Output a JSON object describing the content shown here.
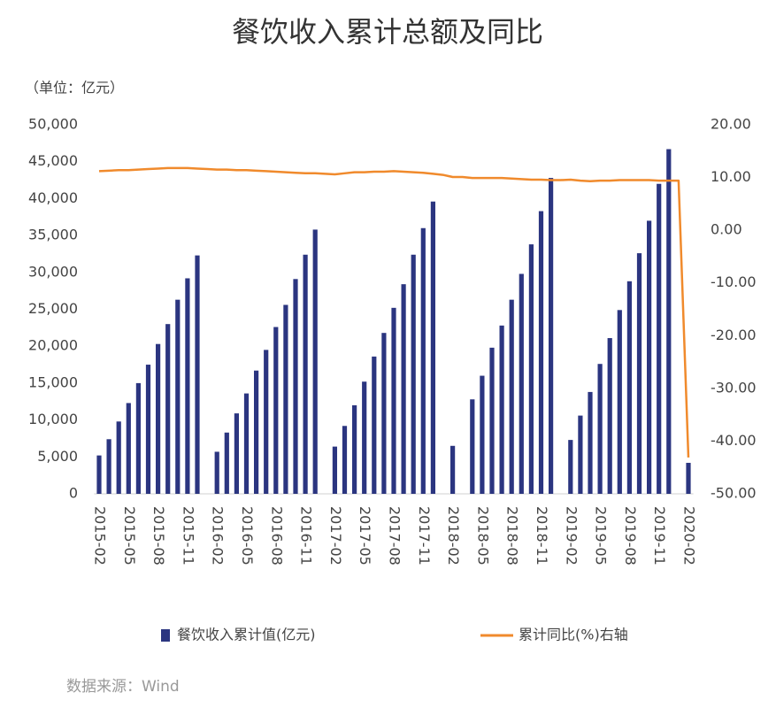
{
  "chart_data": {
    "type": "bar_line",
    "title": "餐饮收入累计总额及同比",
    "unit_label": "（单位：亿元）",
    "source": "数据来源：Wind",
    "categories": [
      "2015-02",
      null,
      null,
      "2015-05",
      null,
      null,
      "2015-08",
      null,
      null,
      "2015-11",
      null,
      null,
      "2016-02",
      null,
      null,
      "2016-05",
      null,
      null,
      "2016-08",
      null,
      null,
      "2016-11",
      null,
      null,
      "2017-02",
      null,
      null,
      "2017-05",
      null,
      null,
      "2017-08",
      null,
      null,
      "2017-11",
      null,
      null,
      "2018-02",
      null,
      null,
      "2018-05",
      null,
      null,
      "2018-08",
      null,
      null,
      "2018-11",
      null,
      null,
      "2019-02",
      null,
      null,
      "2019-05",
      null,
      null,
      "2019-08",
      null,
      null,
      "2019-11",
      null,
      null,
      "2020-02"
    ],
    "series": [
      {
        "name": "餐饮收入累计值(亿元)",
        "color": "#2b3580",
        "kind": "bar",
        "axis": "y",
        "values": [
          5200,
          7400,
          9800,
          12300,
          15000,
          17500,
          20300,
          23000,
          26300,
          29200,
          32300,
          null,
          5700,
          8300,
          10900,
          13600,
          16700,
          19500,
          22600,
          25600,
          29100,
          32400,
          35800,
          null,
          6400,
          9200,
          12000,
          15200,
          18600,
          21800,
          25200,
          28400,
          32400,
          36000,
          39600,
          null,
          6500,
          null,
          12800,
          16000,
          19800,
          22800,
          26300,
          29800,
          33800,
          38300,
          42800,
          null,
          7300,
          10600,
          13800,
          17600,
          21100,
          24900,
          28800,
          32600,
          37000,
          42000,
          46700,
          null,
          4200
        ]
      },
      {
        "name": "累计同比(%)右轴",
        "color": "#f08a2c",
        "kind": "line",
        "axis": "y2",
        "values": [
          11.2,
          11.3,
          11.4,
          11.4,
          11.5,
          11.6,
          11.7,
          11.8,
          11.8,
          11.8,
          11.7,
          11.6,
          11.5,
          11.5,
          11.4,
          11.4,
          11.3,
          11.2,
          11.1,
          11.0,
          10.9,
          10.8,
          10.8,
          10.7,
          10.6,
          10.8,
          11.0,
          11.0,
          11.1,
          11.1,
          11.2,
          11.1,
          11.0,
          10.9,
          10.7,
          10.5,
          10.1,
          10.1,
          9.9,
          9.9,
          9.9,
          9.9,
          9.8,
          9.7,
          9.6,
          9.6,
          9.5,
          9.5,
          9.6,
          9.4,
          9.3,
          9.4,
          9.4,
          9.5,
          9.5,
          9.5,
          9.5,
          9.4,
          9.4,
          9.4,
          -43.1
        ]
      }
    ],
    "ylim": [
      0,
      50000
    ],
    "yticks": [
      0,
      {
        "value": 5000,
        "label": "5,000"
      },
      {
        "value": 10000,
        "label": "10,000"
      },
      {
        "value": 15000,
        "label": "15,000"
      },
      {
        "value": 20000,
        "label": "20,000"
      },
      {
        "value": 25000,
        "label": "25,000"
      },
      {
        "value": 30000,
        "label": "30,000"
      },
      {
        "value": 35000,
        "label": "35,000"
      },
      {
        "value": 40000,
        "label": "40,000"
      },
      {
        "value": 45000,
        "label": "45,000"
      },
      {
        "value": 50000,
        "label": "50,000"
      }
    ],
    "y2lim": [
      -50,
      20
    ],
    "y2ticks": [
      {
        "value": -50,
        "label": "-50.00"
      },
      {
        "value": -40,
        "label": "-40.00"
      },
      {
        "value": -30,
        "label": "-30.00"
      },
      {
        "value": -20,
        "label": "-20.00"
      },
      {
        "value": -10,
        "label": "-10.00"
      },
      {
        "value": 0,
        "label": "0.00"
      },
      {
        "value": 10,
        "label": "10.00"
      },
      {
        "value": 20,
        "label": "20.00"
      }
    ],
    "grid": false,
    "legend": "bottom"
  }
}
